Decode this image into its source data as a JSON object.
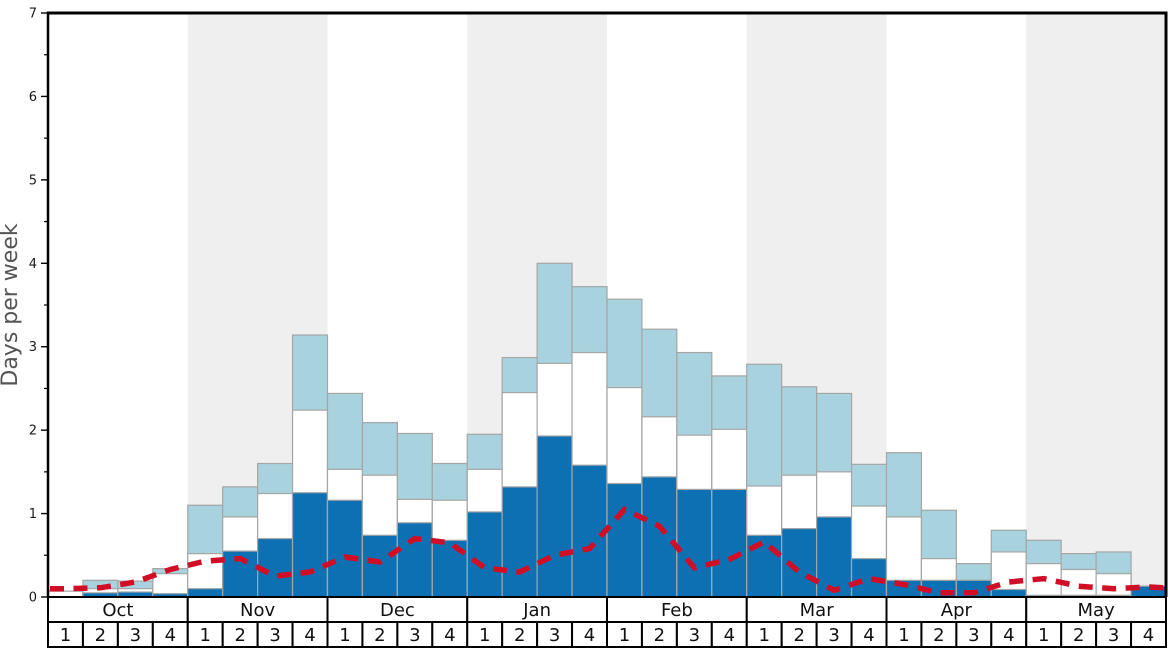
{
  "chart_data": {
    "type": "bar",
    "title": "",
    "ylabel": "Days per week",
    "ylim": [
      0,
      7
    ],
    "y_ticks": [
      0,
      1,
      2,
      3,
      4,
      5,
      6,
      7
    ],
    "y_minor_tick_step": 0.5,
    "grid": false,
    "legend_position": "none",
    "x_months": [
      "Oct",
      "Nov",
      "Dec",
      "Jan",
      "Feb",
      "Mar",
      "Apr",
      "May"
    ],
    "week_labels": [
      "1",
      "2",
      "3",
      "4"
    ],
    "month_band_colors": [
      "#ffffff",
      "#efefef"
    ],
    "bar_border_color": "#a5a5a5",
    "axis_color": "#000000",
    "stacking_note": "32 weekly bars (Oct w1 - May w4); values are cumulative stack tops in days per week",
    "series": [
      {
        "name": "dark-blue-bottom",
        "color": "#0d70b2",
        "cumulative_top": [
          0.0,
          0.05,
          0.06,
          0.04,
          0.1,
          0.55,
          0.7,
          1.25,
          1.16,
          0.74,
          0.89,
          0.68,
          1.02,
          1.32,
          1.93,
          1.58,
          1.36,
          1.44,
          1.29,
          1.29,
          0.74,
          0.82,
          0.96,
          0.46,
          0.2,
          0.2,
          0.2,
          0.09,
          0.02,
          0.02,
          0.02,
          0.13
        ]
      },
      {
        "name": "white-middle",
        "color": "#ffffff",
        "cumulative_top": [
          0.07,
          0.1,
          0.1,
          0.28,
          0.52,
          0.96,
          1.24,
          2.24,
          1.53,
          1.46,
          1.17,
          1.16,
          1.53,
          2.45,
          2.8,
          2.93,
          2.51,
          2.16,
          1.94,
          2.01,
          1.33,
          1.46,
          1.5,
          1.09,
          0.96,
          0.46,
          0.2,
          0.54,
          0.4,
          0.33,
          0.28,
          0.13
        ]
      },
      {
        "name": "light-blue-top",
        "color": "#a8d3de",
        "cumulative_top": [
          0.07,
          0.2,
          0.19,
          0.34,
          1.1,
          1.32,
          1.6,
          3.14,
          2.44,
          2.09,
          1.96,
          1.6,
          1.95,
          2.87,
          4.0,
          3.72,
          3.57,
          3.21,
          2.93,
          2.65,
          2.79,
          2.52,
          2.44,
          1.59,
          1.73,
          1.04,
          0.4,
          0.8,
          0.68,
          0.52,
          0.54,
          0.13
        ]
      }
    ],
    "line_overlay": {
      "name": "red-dashed-line",
      "color": "#d00f27",
      "style": "dashed",
      "values": [
        0.1,
        0.11,
        0.18,
        0.33,
        0.43,
        0.46,
        0.25,
        0.3,
        0.48,
        0.42,
        0.7,
        0.65,
        0.35,
        0.3,
        0.5,
        0.58,
        1.05,
        0.85,
        0.35,
        0.45,
        0.66,
        0.3,
        0.08,
        0.22,
        0.15,
        0.05,
        0.05,
        0.18,
        0.22,
        0.13,
        0.1,
        0.12
      ]
    }
  }
}
